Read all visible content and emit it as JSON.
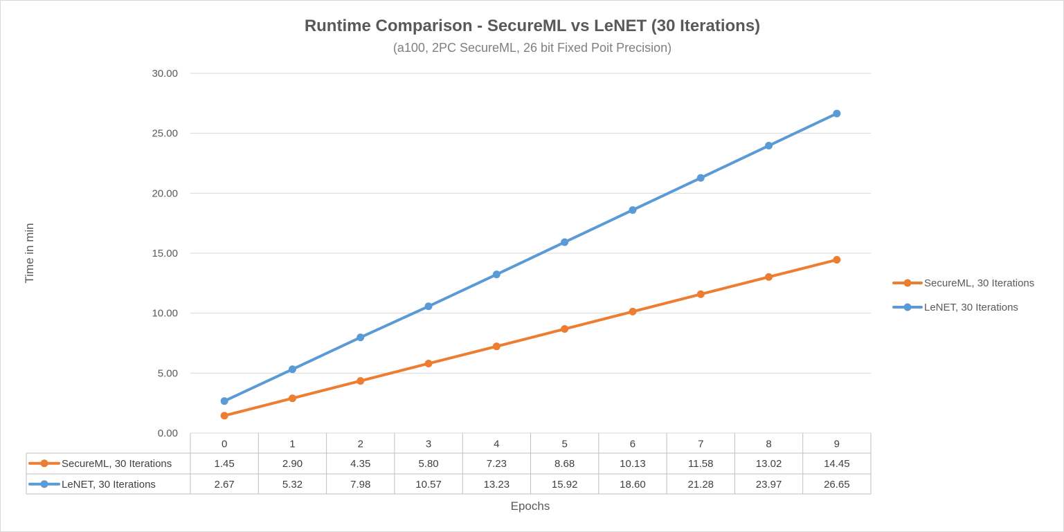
{
  "chart_data": {
    "type": "line",
    "title": "Runtime Comparison - SecureML vs LeNET (30 Iterations)",
    "subtitle": "(a100, 2PC SecureML, 26 bit Fixed Poit Precision)",
    "xlabel": "Epochs",
    "ylabel": "Time in min",
    "categories": [
      "0",
      "1",
      "2",
      "3",
      "4",
      "5",
      "6",
      "7",
      "8",
      "9"
    ],
    "ylim": [
      0,
      30
    ],
    "yticks": [
      "0.00",
      "5.00",
      "10.00",
      "15.00",
      "20.00",
      "25.00",
      "30.00"
    ],
    "grid": true,
    "legend_position": "right",
    "data_table": true,
    "series": [
      {
        "name": "SecureML, 30 Iterations",
        "color": "#ED7D31",
        "values": [
          1.45,
          2.9,
          4.35,
          5.8,
          7.23,
          8.68,
          10.13,
          11.58,
          13.02,
          14.45
        ],
        "labels": [
          "1.45",
          "2.90",
          "4.35",
          "5.80",
          "7.23",
          "8.68",
          "10.13",
          "11.58",
          "13.02",
          "14.45"
        ]
      },
      {
        "name": "LeNET, 30 Iterations",
        "color": "#5B9BD5",
        "values": [
          2.67,
          5.32,
          7.98,
          10.57,
          13.23,
          15.92,
          18.6,
          21.28,
          23.97,
          26.65
        ],
        "labels": [
          "2.67",
          "5.32",
          "7.98",
          "10.57",
          "13.23",
          "15.92",
          "18.60",
          "21.28",
          "23.97",
          "26.65"
        ]
      }
    ]
  }
}
